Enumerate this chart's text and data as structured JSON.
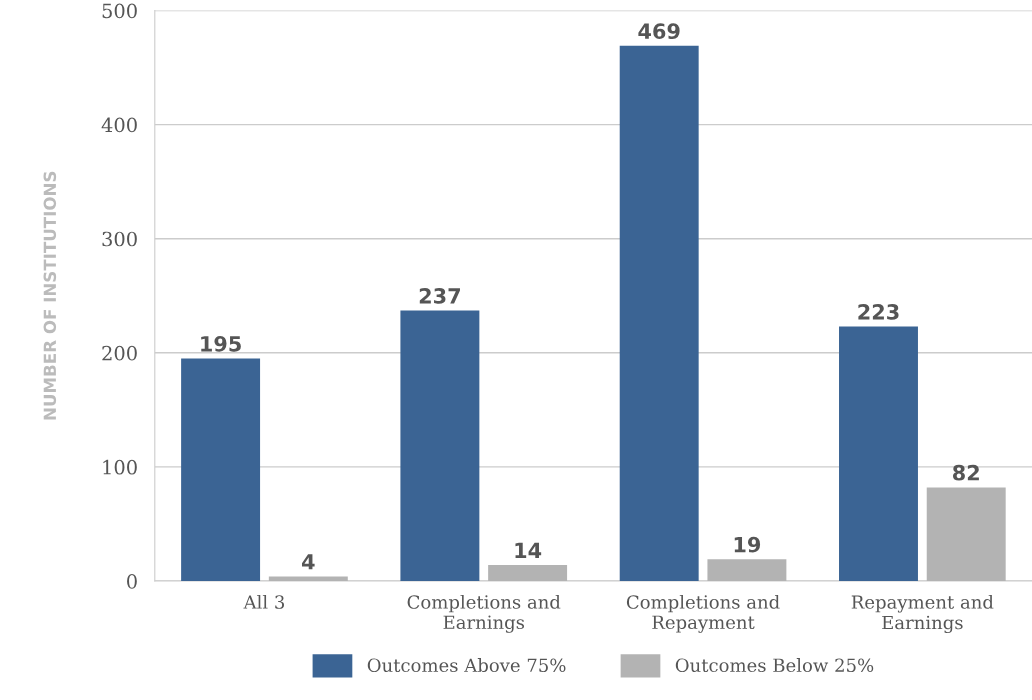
{
  "chart_data": {
    "type": "bar",
    "ylabel": "NUMBER OF INSTITUTIONS",
    "categories": [
      "All 3",
      "Completions and\nEarnings",
      "Completions and\nRepayment",
      "Repayment and\nEarnings"
    ],
    "series": [
      {
        "name": "Outcomes Above 75%",
        "color": "#3b6494",
        "values": [
          195,
          237,
          469,
          223
        ]
      },
      {
        "name": "Outcomes Below 25%",
        "color": "#b3b3b3",
        "values": [
          4,
          14,
          19,
          82
        ]
      }
    ],
    "ylim": [
      0,
      500
    ],
    "yticks": [
      0,
      100,
      200,
      300,
      400,
      500
    ],
    "grid": "y",
    "legend": "bottom",
    "data_labels": true
  }
}
